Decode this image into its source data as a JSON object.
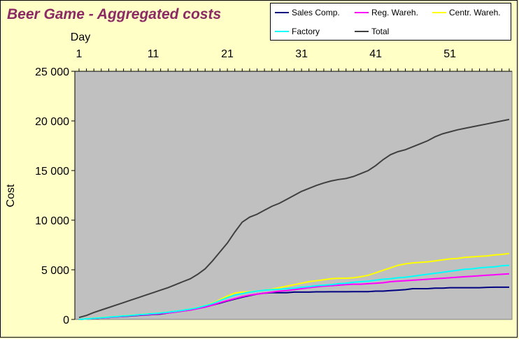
{
  "chart_data": {
    "type": "line",
    "title": "Beer Game - Aggregated  costs",
    "xlabel": "Day",
    "ylabel": "Cost",
    "xlim": [
      1,
      59
    ],
    "ylim": [
      0,
      25000
    ],
    "x_ticks": [
      1,
      11,
      21,
      31,
      41,
      51
    ],
    "y_ticks": [
      0,
      5000,
      10000,
      15000,
      20000,
      25000
    ],
    "y_tick_labels": [
      "0",
      "5 000",
      "10 000",
      "15 000",
      "20 000",
      "25 000"
    ],
    "grid": false,
    "legend_position": "top-right",
    "plot_background": "#c0c0c0",
    "x": [
      1,
      2,
      3,
      4,
      5,
      6,
      7,
      8,
      9,
      10,
      11,
      12,
      13,
      14,
      15,
      16,
      17,
      18,
      19,
      20,
      21,
      22,
      23,
      24,
      25,
      26,
      27,
      28,
      29,
      30,
      31,
      32,
      33,
      34,
      35,
      36,
      37,
      38,
      39,
      40,
      41,
      42,
      43,
      44,
      45,
      46,
      47,
      48,
      49,
      50,
      51,
      52,
      53,
      54,
      55,
      56,
      57,
      58,
      59
    ],
    "series": [
      {
        "name": "Sales Comp.",
        "color": "#000080",
        "values": [
          0,
          50,
          100,
          150,
          200,
          250,
          300,
          350,
          400,
          450,
          500,
          550,
          650,
          750,
          850,
          950,
          1100,
          1250,
          1450,
          1650,
          1850,
          2050,
          2250,
          2400,
          2550,
          2650,
          2700,
          2700,
          2700,
          2750,
          2750,
          2750,
          2780,
          2780,
          2790,
          2790,
          2790,
          2800,
          2800,
          2800,
          2850,
          2850,
          2900,
          2950,
          3000,
          3100,
          3100,
          3100,
          3150,
          3150,
          3200,
          3200,
          3200,
          3200,
          3200,
          3230,
          3250,
          3250,
          3250
        ]
      },
      {
        "name": "Reg. Wareh.",
        "color": "#ff00ff",
        "values": [
          0,
          50,
          100,
          150,
          200,
          260,
          320,
          380,
          430,
          480,
          530,
          590,
          650,
          750,
          850,
          950,
          1100,
          1250,
          1450,
          1700,
          1900,
          2100,
          2300,
          2450,
          2550,
          2650,
          2750,
          2850,
          2900,
          3000,
          3100,
          3200,
          3280,
          3350,
          3400,
          3450,
          3500,
          3550,
          3550,
          3600,
          3650,
          3700,
          3800,
          3850,
          3900,
          3950,
          4000,
          4050,
          4100,
          4150,
          4200,
          4250,
          4300,
          4350,
          4400,
          4450,
          4500,
          4550,
          4600
        ]
      },
      {
        "name": "Centr. Wareh.",
        "color": "#ffff00",
        "values": [
          0,
          60,
          120,
          180,
          240,
          300,
          360,
          420,
          480,
          540,
          600,
          660,
          740,
          820,
          920,
          1050,
          1200,
          1400,
          1650,
          2000,
          2350,
          2650,
          2750,
          2800,
          2850,
          2950,
          3050,
          3200,
          3350,
          3500,
          3650,
          3800,
          3900,
          4000,
          4100,
          4150,
          4150,
          4200,
          4300,
          4450,
          4700,
          4950,
          5200,
          5450,
          5600,
          5700,
          5750,
          5800,
          5900,
          6000,
          6100,
          6150,
          6250,
          6300,
          6350,
          6400,
          6500,
          6550,
          6650
        ]
      },
      {
        "name": "Factory",
        "color": "#00ffff",
        "values": [
          0,
          55,
          110,
          170,
          230,
          290,
          350,
          410,
          470,
          530,
          590,
          650,
          730,
          820,
          920,
          1040,
          1180,
          1380,
          1600,
          1900,
          2200,
          2450,
          2600,
          2750,
          2850,
          2950,
          3000,
          3050,
          3100,
          3150,
          3250,
          3300,
          3400,
          3450,
          3500,
          3600,
          3650,
          3750,
          3800,
          3850,
          3950,
          4050,
          4100,
          4200,
          4250,
          4350,
          4450,
          4550,
          4650,
          4750,
          4850,
          4950,
          5050,
          5100,
          5200,
          5250,
          5300,
          5400,
          5450
        ]
      },
      {
        "name": "Total",
        "color": "#404040",
        "values": [
          200,
          400,
          700,
          950,
          1200,
          1450,
          1700,
          1950,
          2200,
          2450,
          2700,
          2950,
          3200,
          3500,
          3800,
          4100,
          4550,
          5100,
          5900,
          6800,
          7700,
          8800,
          9800,
          10300,
          10600,
          11000,
          11400,
          11700,
          12100,
          12500,
          12900,
          13200,
          13500,
          13750,
          13950,
          14100,
          14200,
          14400,
          14700,
          15000,
          15500,
          16100,
          16600,
          16900,
          17100,
          17400,
          17700,
          18000,
          18400,
          18700,
          18900,
          19100,
          19250,
          19400,
          19550,
          19700,
          19850,
          20000,
          20150
        ]
      }
    ]
  }
}
